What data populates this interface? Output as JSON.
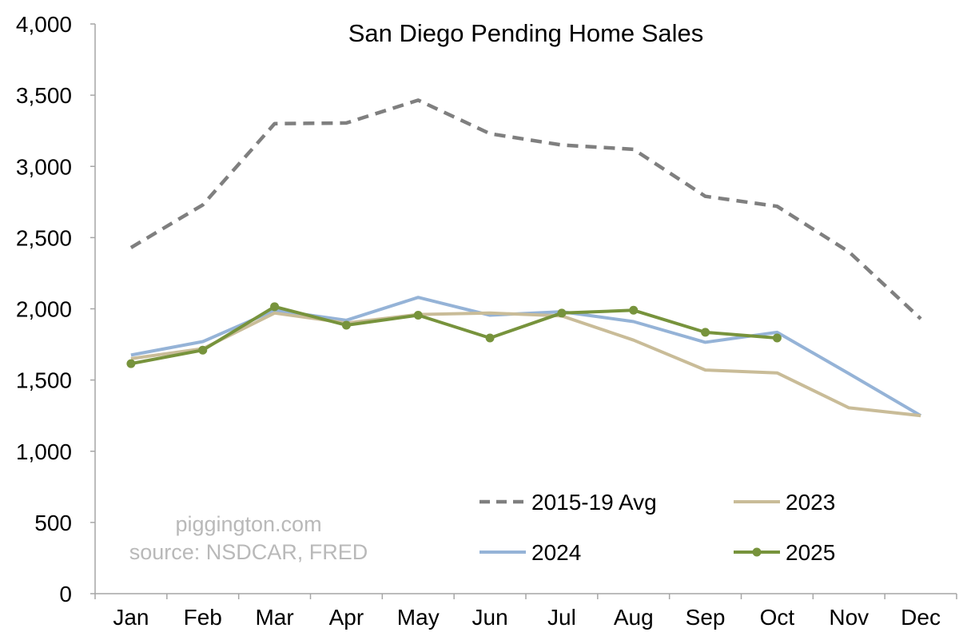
{
  "chart_data": {
    "type": "line",
    "title": "San Diego Pending Home Sales",
    "xlabel": "",
    "ylabel": "",
    "categories": [
      "Jan",
      "Feb",
      "Mar",
      "Apr",
      "May",
      "Jun",
      "Jul",
      "Aug",
      "Sep",
      "Oct",
      "Nov",
      "Dec"
    ],
    "ylim": [
      0,
      4000
    ],
    "yticks": [
      0,
      500,
      1000,
      1500,
      2000,
      2500,
      3000,
      3500,
      4000
    ],
    "ytick_labels": [
      "0",
      "500",
      "1,000",
      "1,500",
      "2,000",
      "2,500",
      "3,000",
      "3,500",
      "4,000"
    ],
    "grid": false,
    "legend_position": "bottom-right",
    "series": [
      {
        "name": "2015-19 Avg",
        "color": "#7f7f7f",
        "style": "dashed",
        "markers": false,
        "values": [
          2430,
          2730,
          3300,
          3305,
          3465,
          3230,
          3150,
          3120,
          2790,
          2720,
          2400,
          1930
        ]
      },
      {
        "name": "2023",
        "color": "#c9bc98",
        "style": "solid",
        "markers": false,
        "values": [
          1650,
          1720,
          1970,
          1900,
          1960,
          1970,
          1950,
          1780,
          1570,
          1550,
          1305,
          1250
        ]
      },
      {
        "name": "2024",
        "color": "#95b3d7",
        "style": "solid",
        "markers": false,
        "values": [
          1675,
          1770,
          1990,
          1920,
          2080,
          1955,
          1980,
          1910,
          1765,
          1835,
          1545,
          1250
        ]
      },
      {
        "name": "2025",
        "color": "#77933c",
        "style": "solid",
        "markers": true,
        "values": [
          1615,
          1710,
          2015,
          1885,
          1955,
          1795,
          1970,
          1990,
          1835,
          1795,
          null,
          null
        ]
      }
    ],
    "annotations": [
      "piggington.com",
      "source: NSDCAR, FRED"
    ]
  }
}
